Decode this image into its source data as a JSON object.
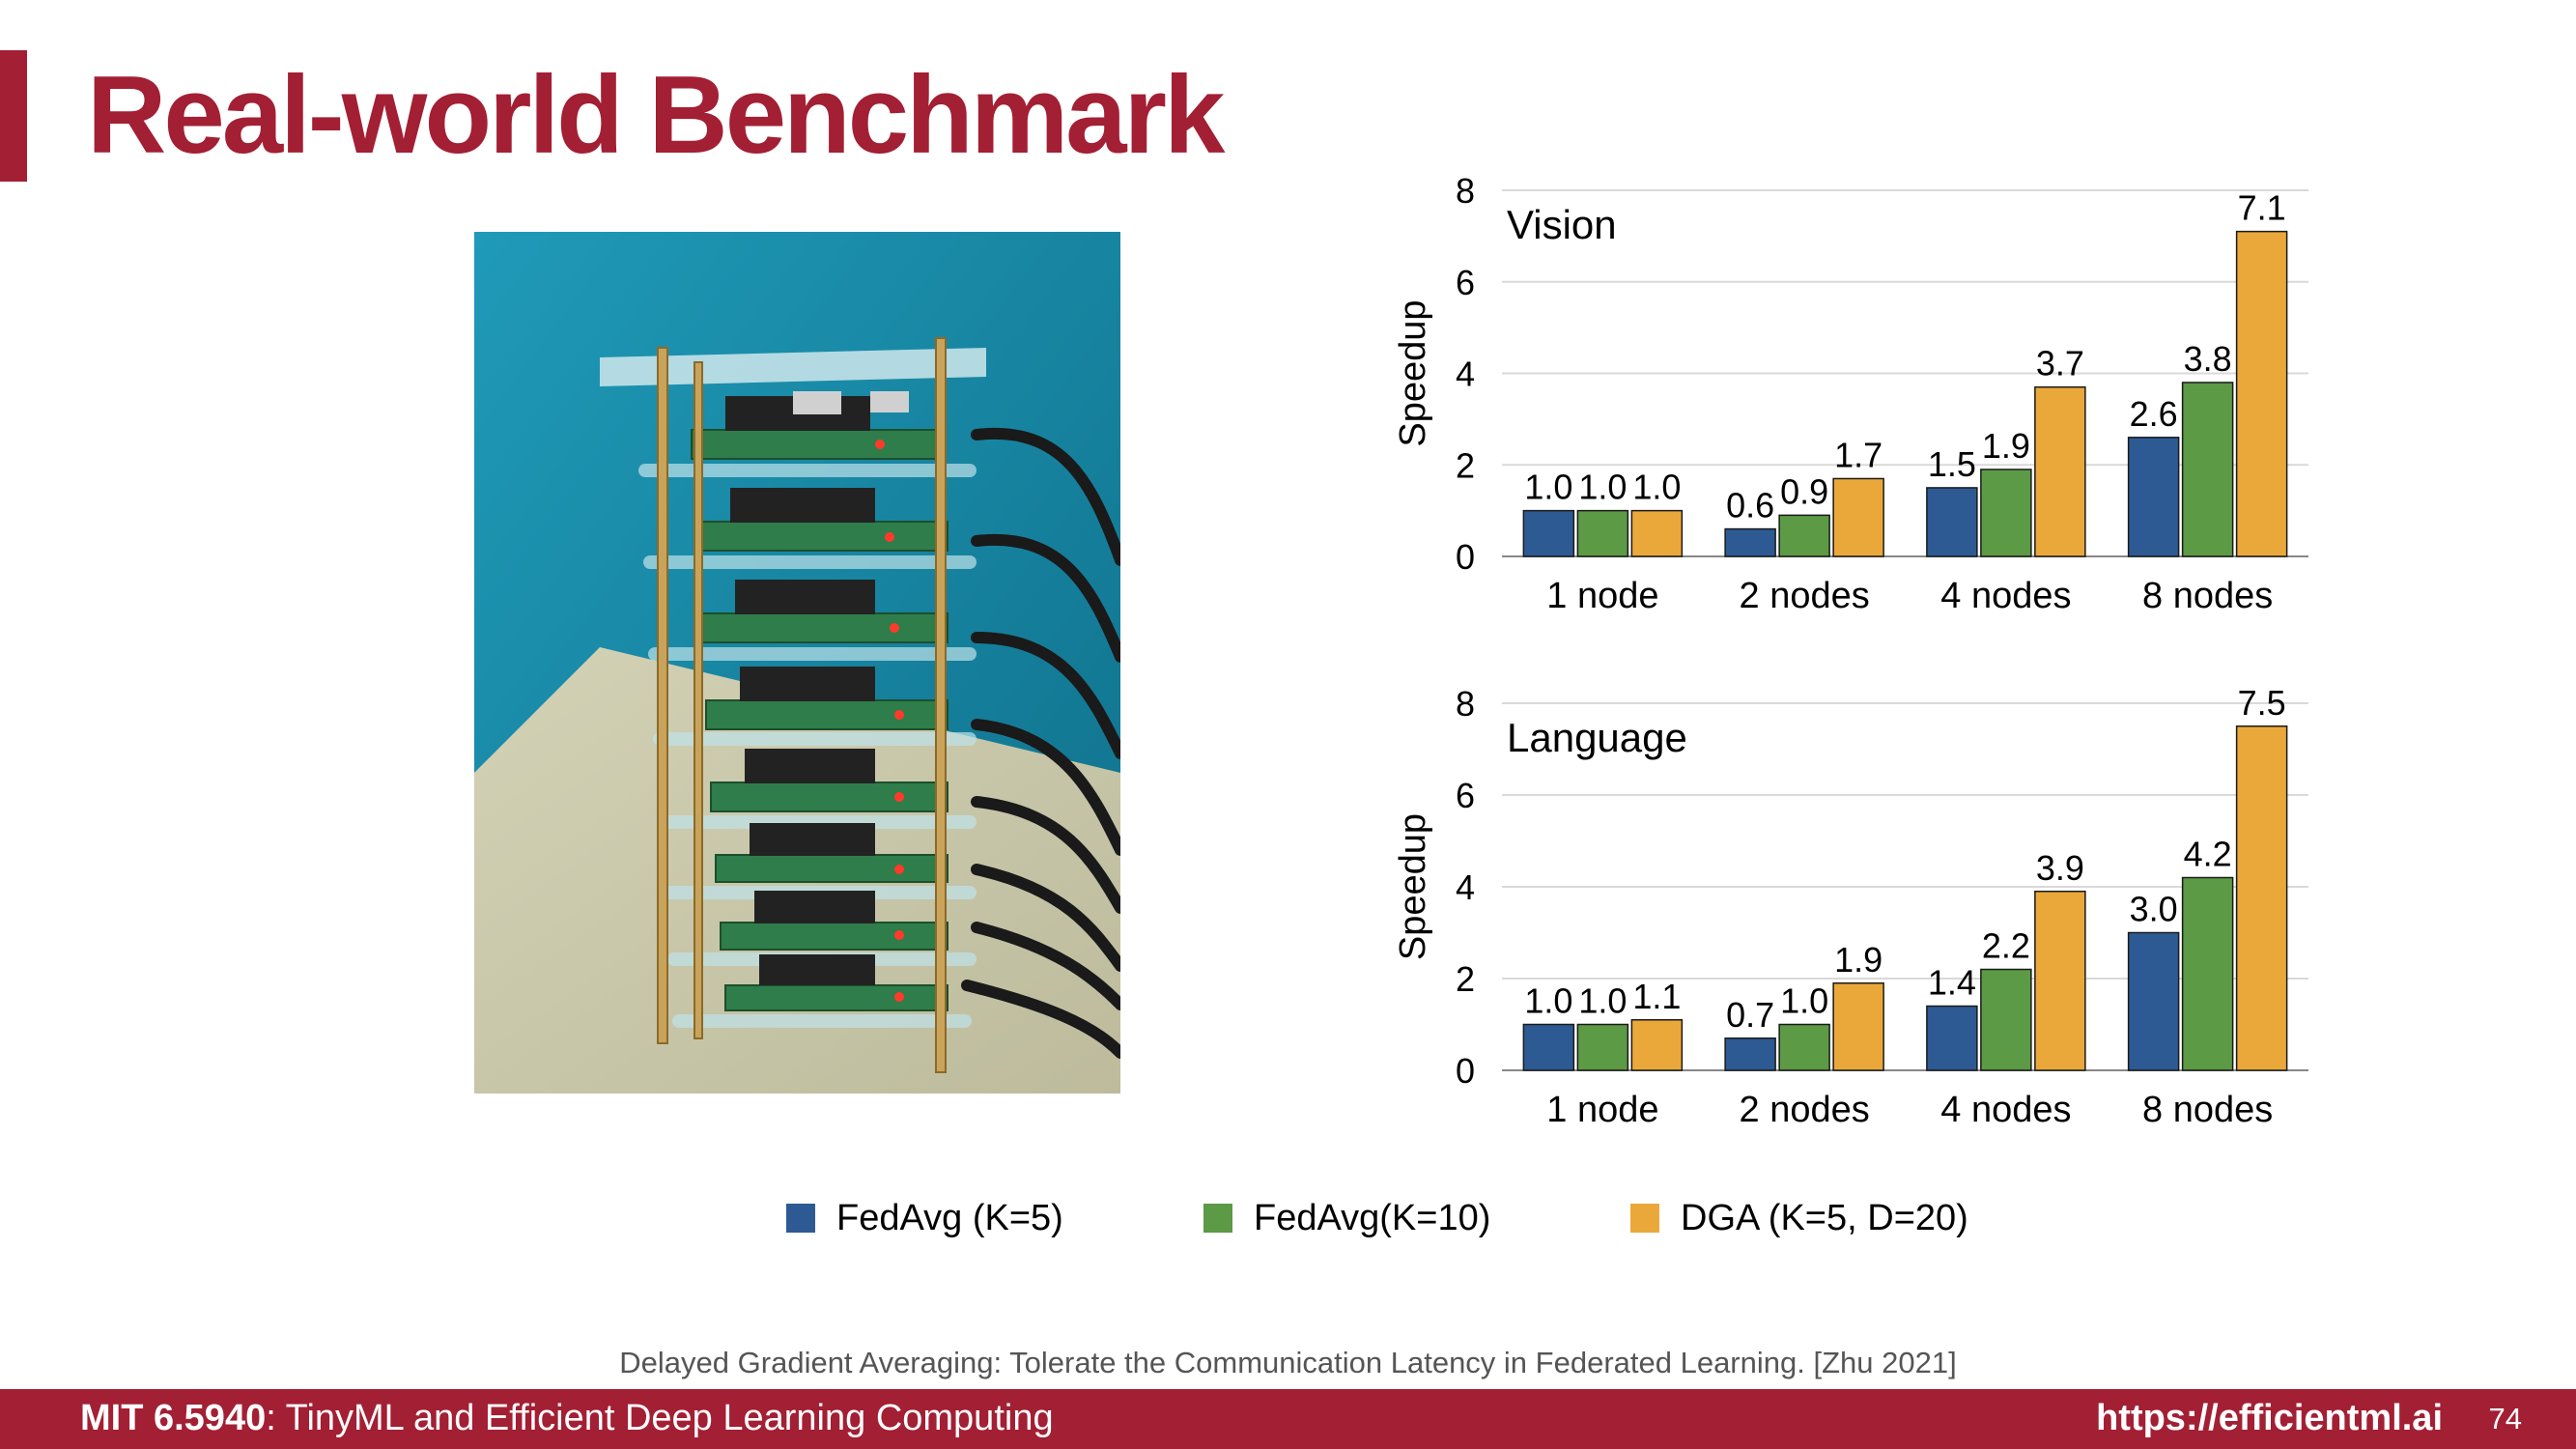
{
  "slide": {
    "title": "Real-world Benchmark",
    "citation": "Delayed Gradient Averaging: Tolerate the Communication Latency in Federated Learning. [Zhu 2021]",
    "footer": {
      "course_code": "MIT 6.5940",
      "course_name": ": TinyML and Efficient Deep Learning Computing",
      "url": "https://efficientml.ai",
      "page": "74"
    },
    "photo": {
      "icon": "raspberry-pi-cluster-photo",
      "colors": {
        "wall": "#2a9fbd",
        "table": "#c8c7a8",
        "board": "#2f7d4a",
        "led": "#ff3a2a"
      }
    }
  },
  "legend": [
    {
      "label": "FedAvg (K=5)",
      "color": "#2e5a94"
    },
    {
      "label": "FedAvg(K=10)",
      "color": "#5c9a45"
    },
    {
      "label": "DGA (K=5, D=20)",
      "color": "#eba83a"
    }
  ],
  "chart_data": [
    {
      "type": "bar",
      "title": "Vision",
      "xlabel": "",
      "ylabel": "Speedup",
      "ylim": [
        0,
        8
      ],
      "yticks": [
        "0",
        "2",
        "4",
        "6",
        "8"
      ],
      "grid": true,
      "categories": [
        "1 node",
        "2 nodes",
        "4 nodes",
        "8 nodes"
      ],
      "series": [
        {
          "name": "FedAvg (K=5)",
          "color": "#2e5a94",
          "values": [
            1.0,
            0.6,
            1.5,
            2.6
          ],
          "labels": [
            "1.0",
            "0.6",
            "1.5",
            "2.6"
          ]
        },
        {
          "name": "FedAvg(K=10)",
          "color": "#5c9a45",
          "values": [
            1.0,
            0.9,
            1.9,
            3.8
          ],
          "labels": [
            "1.0",
            "0.9",
            "1.9",
            "3.8"
          ]
        },
        {
          "name": "DGA (K=5, D=20)",
          "color": "#eba83a",
          "values": [
            1.0,
            1.7,
            3.7,
            7.1
          ],
          "labels": [
            "1.0",
            "1.7",
            "3.7",
            "7.1"
          ]
        }
      ]
    },
    {
      "type": "bar",
      "title": "Language",
      "xlabel": "",
      "ylabel": "Speedup",
      "ylim": [
        0,
        8
      ],
      "yticks": [
        "0",
        "2",
        "4",
        "6",
        "8"
      ],
      "grid": true,
      "categories": [
        "1 node",
        "2 nodes",
        "4 nodes",
        "8 nodes"
      ],
      "series": [
        {
          "name": "FedAvg (K=5)",
          "color": "#2e5a94",
          "values": [
            1.0,
            0.7,
            1.4,
            3.0
          ],
          "labels": [
            "1.0",
            "0.7",
            "1.4",
            "3.0"
          ]
        },
        {
          "name": "FedAvg(K=10)",
          "color": "#5c9a45",
          "values": [
            1.0,
            1.0,
            2.2,
            4.2
          ],
          "labels": [
            "1.0",
            "1.0",
            "2.2",
            "4.2"
          ]
        },
        {
          "name": "DGA (K=5, D=20)",
          "color": "#eba83a",
          "values": [
            1.1,
            1.9,
            3.9,
            7.5
          ],
          "labels": [
            "1.1",
            "1.9",
            "3.9",
            "7.5"
          ]
        }
      ]
    }
  ]
}
